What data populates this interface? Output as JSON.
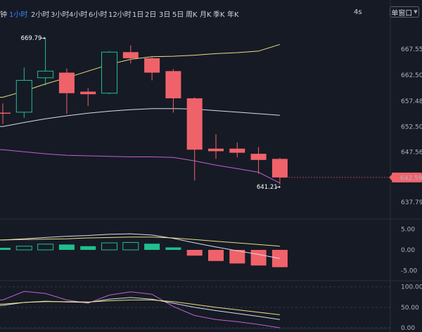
{
  "toolbar": {
    "timeframes": [
      {
        "label": "钟",
        "active": false
      },
      {
        "label": "1小时",
        "active": true
      },
      {
        "label": "2小时",
        "active": false
      },
      {
        "label": "3小时",
        "active": false
      },
      {
        "label": "4小时",
        "active": false
      },
      {
        "label": "6小时",
        "active": false
      },
      {
        "label": "12小时",
        "active": false
      },
      {
        "label": "1日",
        "active": false
      },
      {
        "label": "2日",
        "active": false
      },
      {
        "label": "3日",
        "active": false
      },
      {
        "label": "5日",
        "active": false
      },
      {
        "label": "周K",
        "active": false
      },
      {
        "label": "月K",
        "active": false
      },
      {
        "label": "季K",
        "active": false
      },
      {
        "label": "年K",
        "active": false
      }
    ],
    "speed": "4s",
    "window_mode": "单窗口"
  },
  "colors": {
    "background": "#161a25",
    "up": "#1fbf8f",
    "down": "#f0626a",
    "ma_yellow": "#e8e080",
    "ma_white": "#d8dce6",
    "ma_purple": "#c060d0",
    "accent": "#3a86ff"
  },
  "chart_data": [
    {
      "type": "candlestick",
      "y_ticks": [
        "667.55",
        "662.50",
        "657.48",
        "652.50",
        "647.56",
        "642.59",
        "637.79"
      ],
      "ylim": [
        634.5,
        672.5
      ],
      "current_price": "642.59",
      "annotations": {
        "high": "669.79",
        "low": "641.21"
      },
      "candles": [
        {
          "o": 655.2,
          "h": 657.0,
          "l": 653.0,
          "c": 655.0
        },
        {
          "o": 655.3,
          "h": 664.0,
          "l": 654.2,
          "c": 661.5
        },
        {
          "o": 662.0,
          "h": 669.79,
          "l": 660.5,
          "c": 663.3
        },
        {
          "o": 663.0,
          "h": 663.8,
          "l": 655.0,
          "c": 659.0
        },
        {
          "o": 659.3,
          "h": 660.0,
          "l": 656.5,
          "c": 658.8
        },
        {
          "o": 659.0,
          "h": 667.2,
          "l": 658.8,
          "c": 667.0
        },
        {
          "o": 667.0,
          "h": 668.3,
          "l": 664.8,
          "c": 665.8
        },
        {
          "o": 665.8,
          "h": 666.0,
          "l": 661.5,
          "c": 663.0
        },
        {
          "o": 663.3,
          "h": 663.7,
          "l": 655.2,
          "c": 658.0
        },
        {
          "o": 658.0,
          "h": 658.2,
          "l": 642.0,
          "c": 648.0
        },
        {
          "o": 648.2,
          "h": 651.0,
          "l": 646.2,
          "c": 647.7
        },
        {
          "o": 648.2,
          "h": 649.4,
          "l": 646.5,
          "c": 647.4
        },
        {
          "o": 647.2,
          "h": 648.5,
          "l": 643.3,
          "c": 646.0
        },
        {
          "o": 646.2,
          "h": 646.4,
          "l": 641.21,
          "c": 642.59
        }
      ],
      "ma_lines": [
        {
          "color": "#e8e080",
          "values": [
            658.2,
            659.4,
            660.8,
            662.0,
            663.3,
            664.6,
            665.6,
            666.1,
            666.2,
            666.4,
            666.7,
            666.9,
            667.2,
            668.5
          ]
        },
        {
          "color": "#d8dce6",
          "values": [
            652.5,
            653.3,
            654.0,
            654.6,
            655.1,
            655.5,
            655.8,
            656.0,
            656.0,
            655.9,
            655.6,
            655.3,
            655.0,
            654.7
          ]
        },
        {
          "color": "#c060d0",
          "values": [
            648.0,
            647.6,
            647.2,
            646.9,
            646.8,
            646.7,
            646.6,
            646.6,
            646.5,
            645.8,
            645.0,
            644.3,
            643.6,
            641.5
          ]
        }
      ]
    },
    {
      "type": "bar",
      "y_ticks": [
        "5.00",
        "0.00",
        "-5.00"
      ],
      "ylim": [
        -7.5,
        7.5
      ],
      "histogram": [
        0.5,
        0.9,
        1.4,
        1.3,
        0.9,
        1.7,
        1.8,
        1.5,
        0.6,
        -1.4,
        -2.7,
        -3.3,
        -3.8,
        -4.2
      ],
      "lines": [
        {
          "color": "#d8dce6",
          "values": [
            2.4,
            2.7,
            3.0,
            3.3,
            3.5,
            3.8,
            3.9,
            3.6,
            2.8,
            1.7,
            0.7,
            -0.2,
            -1.1,
            -2.1
          ]
        },
        {
          "color": "#e8e080",
          "values": [
            2.4,
            2.5,
            2.6,
            2.7,
            2.9,
            3.0,
            3.1,
            3.1,
            2.9,
            2.5,
            2.1,
            1.7,
            1.3,
            0.9
          ]
        }
      ]
    },
    {
      "type": "line",
      "y_ticks": [
        "100.00",
        "50.00",
        "0.00"
      ],
      "ylim": [
        0,
        115
      ],
      "lines": [
        {
          "color": "#c060d0",
          "values": [
            68,
            89,
            84,
            68,
            60,
            80,
            88,
            82,
            52,
            30,
            20,
            15,
            8,
            0
          ]
        },
        {
          "color": "#d8dce6",
          "values": [
            55,
            62,
            65,
            63,
            62,
            70,
            74,
            70,
            60,
            50,
            42,
            35,
            28,
            20
          ]
        },
        {
          "color": "#e8e080",
          "values": [
            58,
            62,
            64,
            64,
            63,
            66,
            68,
            68,
            64,
            57,
            50,
            44,
            38,
            32
          ]
        }
      ]
    }
  ]
}
